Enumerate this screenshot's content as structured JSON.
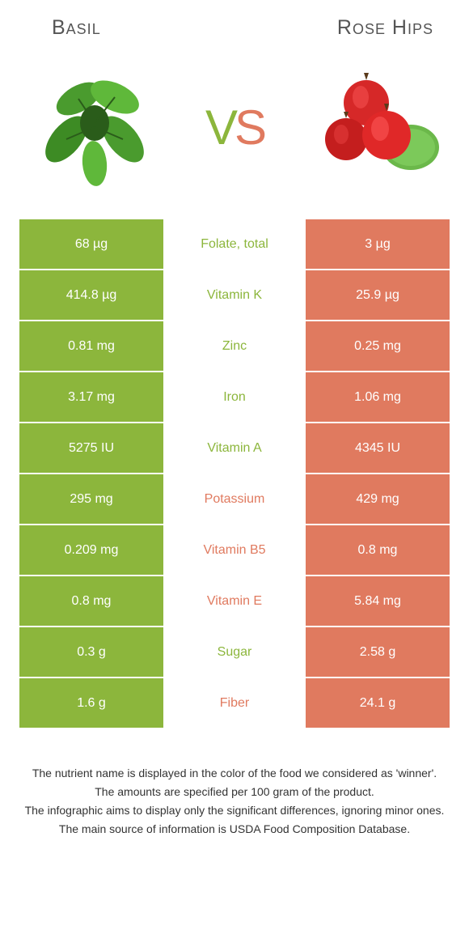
{
  "left": {
    "name": "Basil",
    "color": "#8cb63c"
  },
  "right": {
    "name": "Rose Hips",
    "color": "#e07a5f"
  },
  "colors": {
    "left_bg": "#8cb63c",
    "right_bg": "#e07a5f",
    "left_text": "#8cb63c",
    "right_text": "#e07a5f",
    "cell_text": "#ffffff",
    "title_text": "#555555",
    "footnote_text": "#333333",
    "background": "#ffffff"
  },
  "rows": [
    {
      "label": "Folate, total",
      "left": "68 µg",
      "right": "3 µg",
      "winner": "left"
    },
    {
      "label": "Vitamin K",
      "left": "414.8 µg",
      "right": "25.9 µg",
      "winner": "left"
    },
    {
      "label": "Zinc",
      "left": "0.81 mg",
      "right": "0.25 mg",
      "winner": "left"
    },
    {
      "label": "Iron",
      "left": "3.17 mg",
      "right": "1.06 mg",
      "winner": "left"
    },
    {
      "label": "Vitamin A",
      "left": "5275 IU",
      "right": "4345 IU",
      "winner": "left"
    },
    {
      "label": "Potassium",
      "left": "295 mg",
      "right": "429 mg",
      "winner": "right"
    },
    {
      "label": "Vitamin B5",
      "left": "0.209 mg",
      "right": "0.8 mg",
      "winner": "right"
    },
    {
      "label": "Vitamin E",
      "left": "0.8 mg",
      "right": "5.84 mg",
      "winner": "right"
    },
    {
      "label": "Sugar",
      "left": "0.3 g",
      "right": "2.58 g",
      "winner": "left"
    },
    {
      "label": "Fiber",
      "left": "1.6 g",
      "right": "24.1 g",
      "winner": "right"
    }
  ],
  "footnotes": [
    "The nutrient name is displayed in the color of the food we considered as 'winner'.",
    "The amounts are specified per 100 gram of the product.",
    "The infographic aims to display only the significant differences, ignoring minor ones.",
    "The main source of information is USDA Food Composition Database."
  ],
  "vs": {
    "v": "V",
    "s": "S"
  }
}
